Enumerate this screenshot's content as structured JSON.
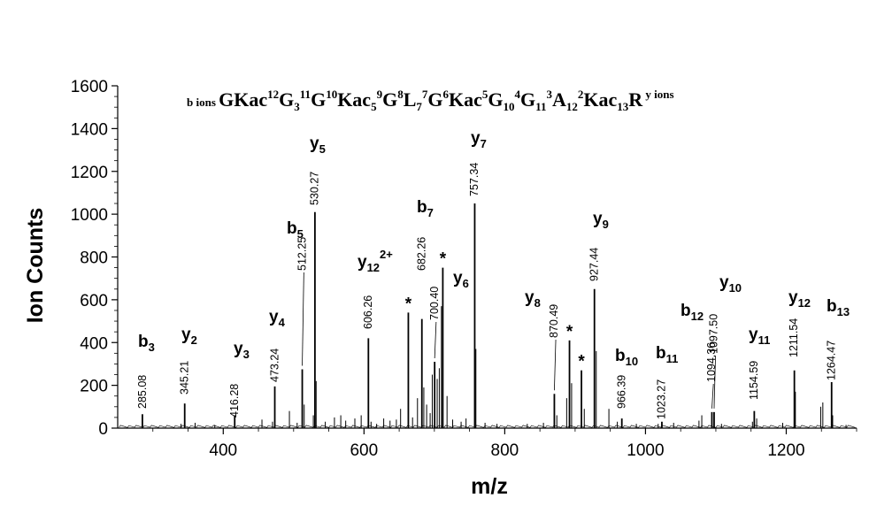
{
  "chart_data": {
    "type": "bar",
    "xlabel": "m/z",
    "ylabel": "Ion Counts",
    "xlim": [
      250,
      1300
    ],
    "ylim": [
      0,
      1600
    ],
    "xticks": [
      400,
      600,
      800,
      1000,
      1200
    ],
    "yticks": [
      0,
      200,
      400,
      600,
      800,
      1000,
      1200,
      1400,
      1600
    ],
    "sequence": {
      "b_label": "b ions",
      "y_label": "y ions",
      "parts": [
        {
          "t": "GKac"
        },
        {
          "t": "12",
          "s": "sup"
        },
        {
          "t": "G"
        },
        {
          "t": "3",
          "s": "sub"
        },
        {
          "t": "11",
          "s": "sup"
        },
        {
          "t": "G"
        },
        {
          "t": "10",
          "s": "sup"
        },
        {
          "t": "Kac"
        },
        {
          "t": "5",
          "s": "sub"
        },
        {
          "t": "9",
          "s": "sup"
        },
        {
          "t": "G"
        },
        {
          "t": "8",
          "s": "sup"
        },
        {
          "t": "L"
        },
        {
          "t": "7",
          "s": "sub"
        },
        {
          "t": "7",
          "s": "sup"
        },
        {
          "t": "G"
        },
        {
          "t": "6",
          "s": "sup"
        },
        {
          "t": "Kac"
        },
        {
          "t": "5",
          "s": "sup"
        },
        {
          "t": "G"
        },
        {
          "t": "10",
          "s": "sub"
        },
        {
          "t": "4",
          "s": "sup"
        },
        {
          "t": "G"
        },
        {
          "t": "11",
          "s": "sub"
        },
        {
          "t": "3",
          "s": "sup"
        },
        {
          "t": "A"
        },
        {
          "t": "12",
          "s": "sub"
        },
        {
          "t": "2",
          "s": "sup"
        },
        {
          "t": "Kac"
        },
        {
          "t": "13",
          "s": "sub"
        },
        {
          "t": "R"
        }
      ]
    },
    "peaks": [
      {
        "mz": 285.08,
        "y": 65,
        "label": "285.08",
        "ion": "b",
        "num": "3"
      },
      {
        "mz": 345.21,
        "y": 115,
        "label": "345.21",
        "ion": "y",
        "num": "2"
      },
      {
        "mz": 416.28,
        "y": 60,
        "label": "416.28",
        "ion": "y",
        "num": "3"
      },
      {
        "mz": 473.24,
        "y": 195,
        "label": "473.24",
        "ion": "y",
        "num": "4"
      },
      {
        "mz": 512.25,
        "y": 275,
        "label": "512.25",
        "ion": "b",
        "num": "5"
      },
      {
        "mz": 530.27,
        "y": 1010,
        "label": "530.27",
        "ion": "y",
        "num": "5"
      },
      {
        "mz": 606.26,
        "y": 420,
        "label": "606.26",
        "ion": "y",
        "num": "12",
        "charge": "2+"
      },
      {
        "mz": 682.26,
        "y": 510,
        "label": "682.26",
        "ion": "b",
        "num": "7"
      },
      {
        "mz": 700.4,
        "y": 310,
        "label": "700.40",
        "ion": "y",
        "num": "6"
      },
      {
        "mz": 757.34,
        "y": 1050,
        "label": "757.34",
        "ion": "y",
        "num": "7"
      },
      {
        "mz": 870.49,
        "y": 160,
        "label": "870.49",
        "ion": "y",
        "num": "8"
      },
      {
        "mz": 927.44,
        "y": 650,
        "label": "927.44",
        "ion": "y",
        "num": "9"
      },
      {
        "mz": 966.39,
        "y": 45,
        "label": "966.39",
        "ion": "b",
        "num": "10"
      },
      {
        "mz": 1023.27,
        "y": 30,
        "label": "1023.27",
        "ion": "b",
        "num": "11"
      },
      {
        "mz": 1094.36,
        "y": 75,
        "label": "1094.36",
        "ion": "b",
        "num": "12"
      },
      {
        "mz": 1097.5,
        "y": 75,
        "label": "1097.50",
        "ion": "y",
        "num": "10"
      },
      {
        "mz": 1154.59,
        "y": 80,
        "label": "1154.59",
        "ion": "y",
        "num": "11"
      },
      {
        "mz": 1211.54,
        "y": 270,
        "label": "1211.54",
        "ion": "y",
        "num": "12"
      },
      {
        "mz": 1264.47,
        "y": 215,
        "label": "1264.47",
        "ion": "b",
        "num": "13"
      }
    ],
    "starred_peaks": [
      {
        "mz": 663,
        "y": 540,
        "label": "*"
      },
      {
        "mz": 712,
        "y": 750,
        "label": "*"
      },
      {
        "mz": 892,
        "y": 410,
        "label": "*"
      },
      {
        "mz": 909,
        "y": 270,
        "label": "*"
      }
    ],
    "minor_peaks": [
      {
        "mz": 340,
        "y": 20
      },
      {
        "mz": 360,
        "y": 25
      },
      {
        "mz": 388,
        "y": 15
      },
      {
        "mz": 455,
        "y": 40
      },
      {
        "mz": 470,
        "y": 30
      },
      {
        "mz": 494,
        "y": 80
      },
      {
        "mz": 505,
        "y": 25
      },
      {
        "mz": 515,
        "y": 110
      },
      {
        "mz": 528,
        "y": 60
      },
      {
        "mz": 532,
        "y": 220
      },
      {
        "mz": 545,
        "y": 30
      },
      {
        "mz": 558,
        "y": 50
      },
      {
        "mz": 567,
        "y": 60
      },
      {
        "mz": 574,
        "y": 35
      },
      {
        "mz": 587,
        "y": 45
      },
      {
        "mz": 596,
        "y": 60
      },
      {
        "mz": 610,
        "y": 30
      },
      {
        "mz": 618,
        "y": 20
      },
      {
        "mz": 628,
        "y": 45
      },
      {
        "mz": 637,
        "y": 35
      },
      {
        "mz": 646,
        "y": 40
      },
      {
        "mz": 652,
        "y": 90
      },
      {
        "mz": 669,
        "y": 50
      },
      {
        "mz": 676,
        "y": 140
      },
      {
        "mz": 685,
        "y": 190
      },
      {
        "mz": 689,
        "y": 110
      },
      {
        "mz": 694,
        "y": 70
      },
      {
        "mz": 697,
        "y": 250
      },
      {
        "mz": 704,
        "y": 230
      },
      {
        "mz": 707,
        "y": 280
      },
      {
        "mz": 710,
        "y": 570
      },
      {
        "mz": 718,
        "y": 150
      },
      {
        "mz": 726,
        "y": 40
      },
      {
        "mz": 738,
        "y": 30
      },
      {
        "mz": 745,
        "y": 45
      },
      {
        "mz": 759,
        "y": 370
      },
      {
        "mz": 772,
        "y": 25
      },
      {
        "mz": 789,
        "y": 20
      },
      {
        "mz": 832,
        "y": 20
      },
      {
        "mz": 855,
        "y": 25
      },
      {
        "mz": 874,
        "y": 60
      },
      {
        "mz": 888,
        "y": 140
      },
      {
        "mz": 895,
        "y": 210
      },
      {
        "mz": 913,
        "y": 90
      },
      {
        "mz": 930,
        "y": 360
      },
      {
        "mz": 948,
        "y": 90
      },
      {
        "mz": 960,
        "y": 30
      },
      {
        "mz": 987,
        "y": 20
      },
      {
        "mz": 1018,
        "y": 20
      },
      {
        "mz": 1040,
        "y": 25
      },
      {
        "mz": 1076,
        "y": 35
      },
      {
        "mz": 1080,
        "y": 60
      },
      {
        "mz": 1108,
        "y": 20
      },
      {
        "mz": 1152,
        "y": 30
      },
      {
        "mz": 1158,
        "y": 45
      },
      {
        "mz": 1195,
        "y": 25
      },
      {
        "mz": 1213,
        "y": 170
      },
      {
        "mz": 1249,
        "y": 100
      },
      {
        "mz": 1252,
        "y": 120
      },
      {
        "mz": 1266,
        "y": 60
      },
      {
        "mz": 1285,
        "y": 15
      }
    ],
    "colors": {
      "ink": "#000000",
      "background": "#ffffff"
    }
  }
}
